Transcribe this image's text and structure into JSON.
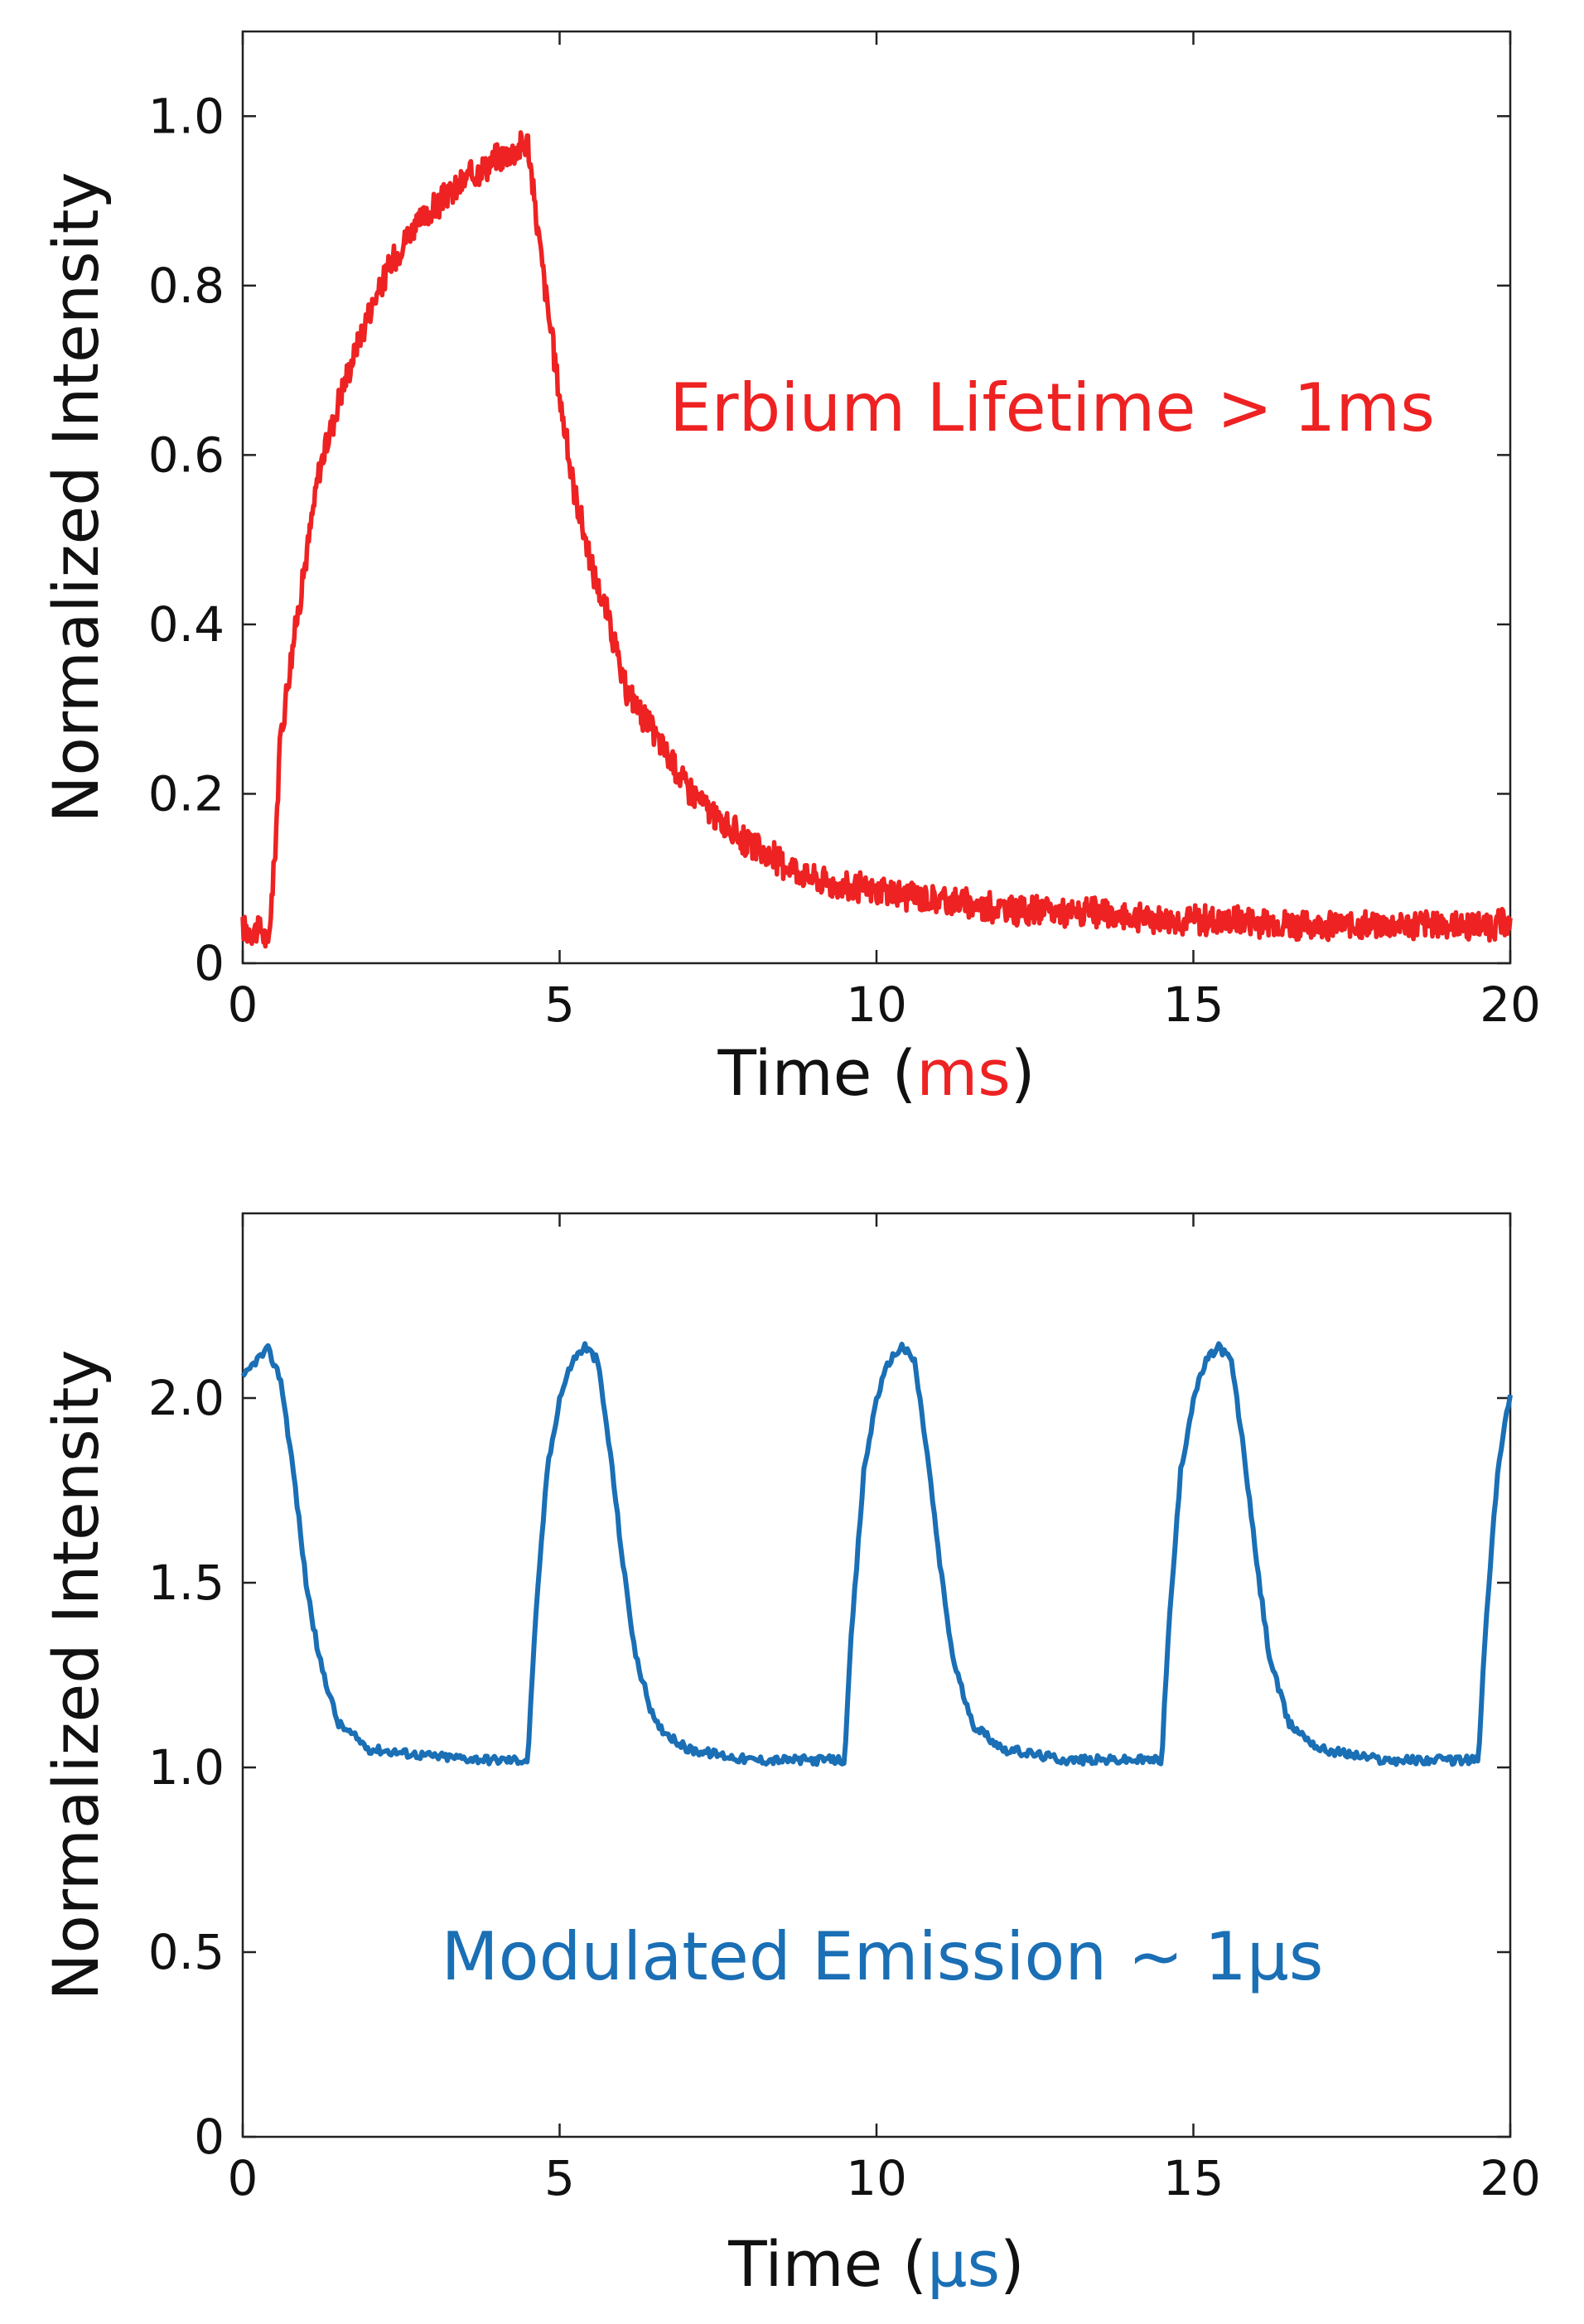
{
  "chart_data": [
    {
      "type": "line",
      "xlabel_prefix": "Time (",
      "xlabel_unit": "ms",
      "xlabel_suffix": ")",
      "ylabel": "Normalized Intensity",
      "annotation": "Erbium Lifetime > 1ms",
      "color": "#ee2222",
      "xlim": [
        0,
        20
      ],
      "ylim": [
        0,
        1.1
      ],
      "xticks": [
        0,
        5,
        10,
        15,
        20
      ],
      "xtick_labels": [
        "0",
        "5",
        "10",
        "15",
        "20"
      ],
      "yticks": [
        0,
        0.2,
        0.4,
        0.6,
        0.8,
        1.0
      ],
      "ytick_labels": [
        "0",
        "0.2",
        "0.4",
        "0.6",
        "0.8",
        "1.0"
      ],
      "series": [
        {
          "x": [
            0,
            0.3,
            0.4,
            0.5,
            0.6,
            0.8,
            1.0,
            1.2,
            1.5,
            1.8,
            2.0,
            2.3,
            2.6,
            3.0,
            3.3,
            3.6,
            4.0,
            4.3,
            4.5,
            4.6,
            4.8,
            5.0,
            5.2,
            5.5,
            5.8,
            6.0,
            6.5,
            7.0,
            7.5,
            8.0,
            8.5,
            9.0,
            9.5,
            10.0,
            11.0,
            12.0,
            13.0,
            14.0,
            15.0,
            16.0,
            17.0,
            18.0,
            19.0,
            20.0
          ],
          "y": [
            0.04,
            0.04,
            0.02,
            0.12,
            0.27,
            0.38,
            0.48,
            0.58,
            0.66,
            0.73,
            0.77,
            0.82,
            0.86,
            0.89,
            0.91,
            0.93,
            0.95,
            0.96,
            0.97,
            0.9,
            0.78,
            0.67,
            0.57,
            0.47,
            0.4,
            0.33,
            0.27,
            0.21,
            0.17,
            0.14,
            0.12,
            0.1,
            0.09,
            0.085,
            0.075,
            0.065,
            0.06,
            0.055,
            0.05,
            0.05,
            0.045,
            0.045,
            0.045,
            0.045
          ],
          "noise": 0.02
        }
      ]
    },
    {
      "type": "line",
      "xlabel_prefix": "Time (",
      "xlabel_unit": "µs",
      "xlabel_suffix": ")",
      "ylabel": "Normalized Intensity",
      "annotation": "Modulated Emission ~ 1µs",
      "color": "#1a6fb5",
      "xlim": [
        0,
        20
      ],
      "ylim": [
        0,
        2.5
      ],
      "xticks": [
        0,
        5,
        10,
        15,
        20
      ],
      "xtick_labels": [
        "0",
        "5",
        "10",
        "15",
        "20"
      ],
      "yticks": [
        0,
        0.5,
        1.0,
        1.5,
        2.0
      ],
      "ytick_labels": [
        "0",
        "0.5",
        "1.0",
        "1.5",
        "2.0"
      ],
      "series": [
        {
          "x": [
            0,
            0.2,
            0.4,
            0.6,
            0.8,
            1.0,
            1.2,
            1.5,
            2.0,
            3.0,
            4.0,
            4.5,
            4.6,
            4.8,
            5.0,
            5.2,
            5.4,
            5.6,
            5.8,
            6.0,
            6.2,
            6.5,
            7.0,
            8.0,
            9.0,
            9.5,
            9.6,
            9.8,
            10.0,
            10.2,
            10.4,
            10.6,
            10.8,
            11.0,
            11.2,
            11.5,
            12.0,
            13.0,
            14.0,
            14.5,
            14.6,
            14.8,
            15.0,
            15.2,
            15.4,
            15.6,
            15.8,
            16.0,
            16.2,
            16.5,
            17.0,
            18.0,
            19.0,
            19.5,
            19.6,
            19.8,
            20.0
          ],
          "y": [
            2.05,
            2.1,
            2.13,
            2.05,
            1.8,
            1.5,
            1.3,
            1.12,
            1.05,
            1.03,
            1.02,
            1.02,
            1.35,
            1.8,
            2.0,
            2.1,
            2.14,
            2.1,
            1.85,
            1.55,
            1.3,
            1.12,
            1.05,
            1.02,
            1.02,
            1.02,
            1.35,
            1.8,
            2.0,
            2.1,
            2.14,
            2.1,
            1.85,
            1.55,
            1.3,
            1.12,
            1.05,
            1.02,
            1.02,
            1.02,
            1.35,
            1.8,
            2.0,
            2.1,
            2.14,
            2.1,
            1.85,
            1.55,
            1.3,
            1.12,
            1.05,
            1.02,
            1.02,
            1.02,
            1.35,
            1.8,
            2.02
          ],
          "noise": 0.012
        }
      ]
    }
  ]
}
